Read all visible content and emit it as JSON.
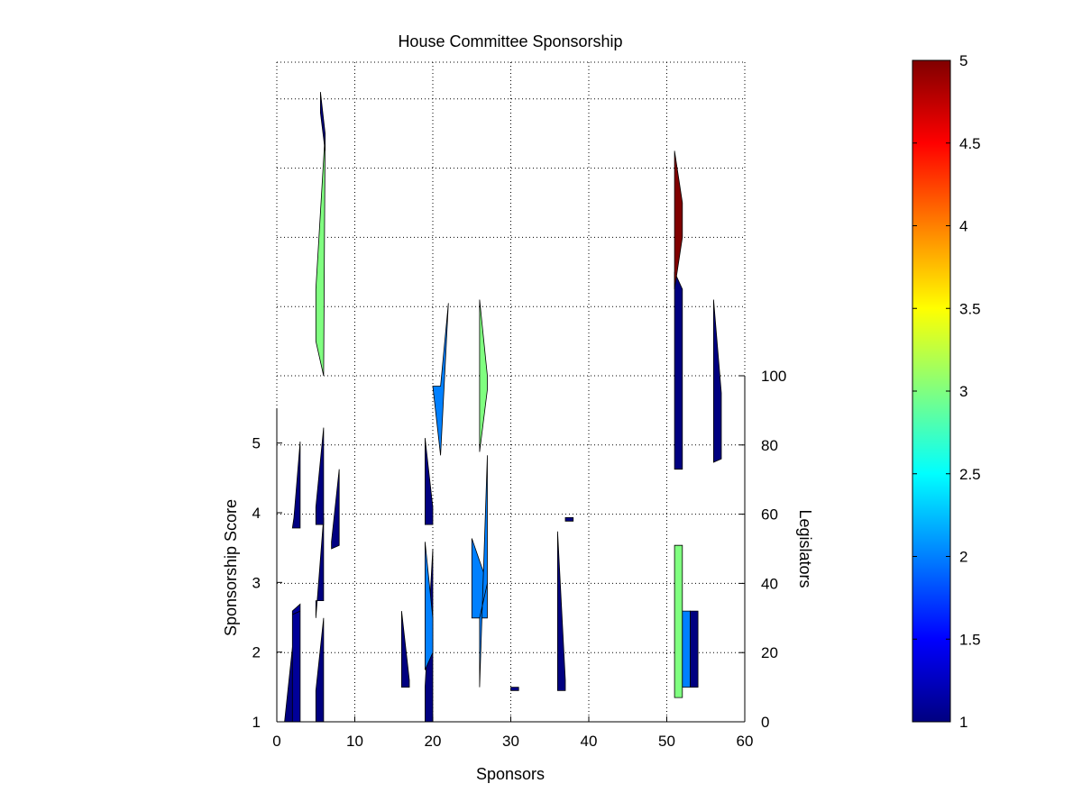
{
  "chart_data": {
    "type": "area",
    "title": "House Committee Sponsorship",
    "xlabel": "Sponsors",
    "ylabel_left": "Sponsorship Score",
    "ylabel_right": "Legislators",
    "xlim": [
      0,
      60
    ],
    "ylim_left": [
      1,
      5.5
    ],
    "ylim_right": [
      0,
      100
    ],
    "grid": true,
    "x_ticks": [
      "0",
      "10",
      "20",
      "30",
      "40",
      "50",
      "60"
    ],
    "y_left_ticks": [
      "1",
      "2",
      "3",
      "4",
      "5"
    ],
    "y_right_ticks": [
      "0",
      "20",
      "40",
      "60",
      "80",
      "100"
    ],
    "colorbar": {
      "colormap": "jet",
      "range": [
        1,
        5
      ],
      "ticks": [
        "1",
        "1.5",
        "2",
        "2.5",
        "3",
        "3.5",
        "4",
        "4.5",
        "5"
      ],
      "stops": [
        "#000080",
        "#0000ff",
        "#0080ff",
        "#00ffff",
        "#80ff80",
        "#ffff00",
        "#ff8000",
        "#ff0000",
        "#800000"
      ]
    },
    "shapes": [
      {
        "x": [
          1,
          2.5,
          2.5,
          1
        ],
        "y": [
          0,
          0,
          32,
          0
        ],
        "score": 1.0
      },
      {
        "x": [
          2,
          3,
          3,
          2
        ],
        "y": [
          0,
          0,
          34,
          32
        ],
        "score": 1.1
      },
      {
        "x": [
          2,
          3,
          3,
          2
        ],
        "y": [
          31,
          32,
          32,
          31
        ],
        "score": 2.0
      },
      {
        "x": [
          2,
          3,
          3,
          2.2
        ],
        "y": [
          56,
          56,
          81,
          59
        ],
        "score": 1.0
      },
      {
        "x": [
          5,
          6,
          6,
          5
        ],
        "y": [
          0,
          0,
          30,
          9
        ],
        "score": 1.0
      },
      {
        "x": [
          5,
          6,
          6,
          5
        ],
        "y": [
          35,
          35,
          59,
          30
        ],
        "score": 1.0
      },
      {
        "x": [
          5,
          6,
          6,
          5
        ],
        "y": [
          57,
          57,
          85,
          62
        ],
        "score": 1.0
      },
      {
        "x": [
          5,
          6,
          6.2,
          5
        ],
        "y": [
          110,
          100,
          170,
          125
        ],
        "score": 3.0
      },
      {
        "x": [
          5.6,
          6.2,
          6.2,
          5.6
        ],
        "y": [
          176,
          165,
          170,
          182
        ],
        "score": 1.0
      },
      {
        "x": [
          7,
          8,
          8,
          7
        ],
        "y": [
          50,
          51,
          73,
          52
        ],
        "score": 1.0
      },
      {
        "x": [
          16,
          17,
          17,
          16
        ],
        "y": [
          10,
          10,
          12,
          32
        ],
        "score": 1.0
      },
      {
        "x": [
          19,
          20,
          20,
          19
        ],
        "y": [
          0,
          0,
          50,
          10
        ],
        "score": 1.0
      },
      {
        "x": [
          19,
          20,
          20,
          19
        ],
        "y": [
          15,
          20,
          30,
          52
        ],
        "score": 2.0
      },
      {
        "x": [
          19,
          20,
          20,
          19
        ],
        "y": [
          57,
          57,
          62,
          82
        ],
        "score": 1.0
      },
      {
        "x": [
          20,
          21,
          22,
          21
        ],
        "y": [
          97,
          97,
          121,
          77
        ],
        "score": 2.0
      },
      {
        "x": [
          25,
          27,
          27,
          25
        ],
        "y": [
          30,
          30,
          40,
          53
        ],
        "score": 2.0
      },
      {
        "x": [
          26,
          27,
          27,
          26
        ],
        "y": [
          30,
          40,
          77,
          10
        ],
        "score": 2.0
      },
      {
        "x": [
          26,
          27,
          27,
          26
        ],
        "y": [
          78,
          96,
          100,
          122
        ],
        "score": 3.0
      },
      {
        "x": [
          30,
          31,
          31,
          30
        ],
        "y": [
          9,
          9,
          10,
          10
        ],
        "score": 1.0
      },
      {
        "x": [
          36,
          37,
          37,
          36
        ],
        "y": [
          9,
          9,
          12,
          55
        ],
        "score": 1.0
      },
      {
        "x": [
          37,
          38,
          38,
          37
        ],
        "y": [
          58,
          58,
          59,
          59
        ],
        "score": 1.0
      },
      {
        "x": [
          51,
          52,
          52,
          51
        ],
        "y": [
          73,
          73,
          125,
          130
        ],
        "score": 1.0
      },
      {
        "x": [
          51,
          52,
          52,
          51
        ],
        "y": [
          125,
          140,
          150,
          165
        ],
        "score": 5.0
      },
      {
        "x": [
          51,
          52,
          52,
          51
        ],
        "y": [
          7,
          7,
          51,
          51
        ],
        "score": 3.0
      },
      {
        "x": [
          52,
          53,
          53,
          52
        ],
        "y": [
          10,
          10,
          32,
          32
        ],
        "score": 2.0
      },
      {
        "x": [
          53,
          54,
          54,
          53
        ],
        "y": [
          10,
          10,
          32,
          32
        ],
        "score": 1.0
      },
      {
        "x": [
          56,
          57,
          57,
          56
        ],
        "y": [
          75,
          76,
          95,
          122
        ],
        "score": 1.0
      }
    ]
  }
}
